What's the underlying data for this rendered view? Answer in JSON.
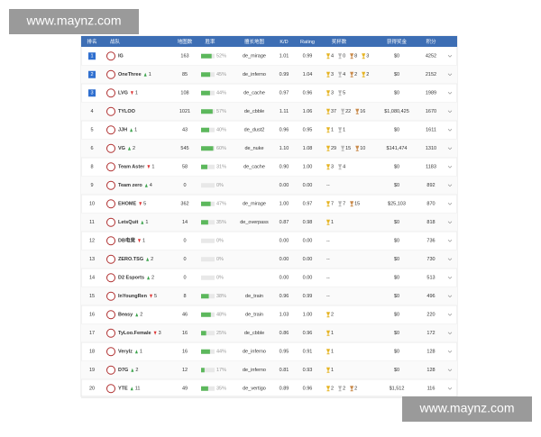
{
  "watermarks": [
    "www.maynz.com",
    "www.maynz.com"
  ],
  "table": {
    "headers": [
      "排名",
      "战队",
      "地图数",
      "胜率",
      "擅长地图",
      "K/D",
      "Rating",
      "奖杯数",
      "获得奖金",
      "积分"
    ],
    "rows": [
      {
        "rank": "1",
        "team": "IG",
        "change": null,
        "maps": "163",
        "win": {
          "value": 52,
          "label": "52%"
        },
        "map": "de_mirage",
        "kd": "1.01",
        "rating": "0.99",
        "trophies": [
          "4",
          "0",
          "8",
          "3"
        ],
        "prize": "$0",
        "points": "4252"
      },
      {
        "rank": "2",
        "team": "OneThree",
        "change": {
          "dir": "up",
          "text": "1"
        },
        "maps": "85",
        "win": {
          "value": 45,
          "label": "45%"
        },
        "map": "de_inferno",
        "kd": "0.99",
        "rating": "1.04",
        "trophies": [
          "3",
          "4",
          "2",
          "2"
        ],
        "prize": "$0",
        "points": "2152"
      },
      {
        "rank": "3",
        "team": "LVG",
        "change": {
          "dir": "down",
          "text": "1"
        },
        "maps": "108",
        "win": {
          "value": 44,
          "label": "44%"
        },
        "map": "de_cache",
        "kd": "0.97",
        "rating": "0.96",
        "trophies": [
          "3",
          "5"
        ],
        "prize": "$0",
        "points": "1989"
      },
      {
        "rank": "4",
        "team": "TYLOO",
        "change": null,
        "maps": "1021",
        "win": {
          "value": 57,
          "label": "57%"
        },
        "map": "de_cbble",
        "kd": "1.11",
        "rating": "1.06",
        "trophies": [
          "37",
          "22",
          "16"
        ],
        "prize": "$1,080,425",
        "points": "1670"
      },
      {
        "rank": "5",
        "team": "JJH",
        "change": {
          "dir": "up",
          "text": "1"
        },
        "maps": "43",
        "win": {
          "value": 40,
          "label": "40%"
        },
        "map": "de_dust2",
        "kd": "0.96",
        "rating": "0.95",
        "trophies": [
          "1",
          "1"
        ],
        "prize": "$0",
        "points": "1611"
      },
      {
        "rank": "6",
        "team": "VG",
        "change": {
          "dir": "up",
          "text": "2"
        },
        "maps": "545",
        "win": {
          "value": 60,
          "label": "60%"
        },
        "map": "de_nuke",
        "kd": "1.10",
        "rating": "1.08",
        "trophies": [
          "29",
          "15",
          "10"
        ],
        "prize": "$141,474",
        "points": "1310"
      },
      {
        "rank": "8",
        "team": "Team Aster",
        "change": {
          "dir": "down",
          "text": "1"
        },
        "maps": "58",
        "win": {
          "value": 31,
          "label": "31%"
        },
        "map": "de_cache",
        "kd": "0.90",
        "rating": "1.00",
        "trophies": [
          "3",
          "4"
        ],
        "prize": "$0",
        "points": "1183"
      },
      {
        "rank": "9",
        "team": "Team zero",
        "change": {
          "dir": "up",
          "text": "4"
        },
        "maps": "0",
        "win": {
          "value": 0,
          "label": "0%"
        },
        "map": null,
        "kd": "0.00",
        "rating": "0.00",
        "trophies": [
          "--"
        ],
        "prize": "$0",
        "points": "892"
      },
      {
        "rank": "10",
        "team": "EHOME",
        "change": {
          "dir": "down",
          "text": "5"
        },
        "maps": "362",
        "win": {
          "value": 47,
          "label": "47%"
        },
        "map": "de_mirage",
        "kd": "1.00",
        "rating": "0.97",
        "trophies": [
          "7",
          "7",
          "15"
        ],
        "prize": "$25,103",
        "points": "870"
      },
      {
        "rank": "11",
        "team": "LetsQuit",
        "change": {
          "dir": "up",
          "text": "1"
        },
        "maps": "14",
        "win": {
          "value": 35,
          "label": "35%"
        },
        "map": "de_overpass",
        "kd": "0.87",
        "rating": "0.98",
        "trophies": [
          "1"
        ],
        "prize": "$0",
        "points": "818"
      },
      {
        "rank": "12",
        "team": "DB电竞",
        "change": {
          "dir": "down",
          "text": "1"
        },
        "maps": "0",
        "win": {
          "value": 0,
          "label": "0%"
        },
        "map": null,
        "kd": "0.00",
        "rating": "0.00",
        "trophies": [
          "--"
        ],
        "prize": "$0",
        "points": "736"
      },
      {
        "rank": "13",
        "team": "ZERO.TSG",
        "change": {
          "dir": "up",
          "text": "2"
        },
        "maps": "0",
        "win": {
          "value": 0,
          "label": "0%"
        },
        "map": null,
        "kd": "0.00",
        "rating": "0.00",
        "trophies": [
          "--"
        ],
        "prize": "$0",
        "points": "730"
      },
      {
        "rank": "14",
        "team": "D2 Esports",
        "change": {
          "dir": "up",
          "text": "2"
        },
        "maps": "0",
        "win": {
          "value": 0,
          "label": "0%"
        },
        "map": null,
        "kd": "0.00",
        "rating": "0.00",
        "trophies": [
          "--"
        ],
        "prize": "$0",
        "points": "513"
      },
      {
        "rank": "15",
        "team": "InYoungRen",
        "change": {
          "dir": "down",
          "text": "5"
        },
        "maps": "8",
        "win": {
          "value": 38,
          "label": "38%"
        },
        "map": "de_train",
        "kd": "0.96",
        "rating": "0.99",
        "trophies": [
          "--"
        ],
        "prize": "$0",
        "points": "496"
      },
      {
        "rank": "16",
        "team": "Beasy",
        "change": {
          "dir": "up",
          "text": "2"
        },
        "maps": "46",
        "win": {
          "value": 48,
          "label": "48%"
        },
        "map": "de_train",
        "kd": "1.03",
        "rating": "1.00",
        "trophies": [
          "2"
        ],
        "prize": "$0",
        "points": "220"
      },
      {
        "rank": "17",
        "team": "TyLoo.Female",
        "change": {
          "dir": "down",
          "text": "3"
        },
        "maps": "16",
        "win": {
          "value": 25,
          "label": "25%"
        },
        "map": "de_cbble",
        "kd": "0.86",
        "rating": "0.96",
        "trophies": [
          "1"
        ],
        "prize": "$0",
        "points": "172"
      },
      {
        "rank": "18",
        "team": "Verylz",
        "change": {
          "dir": "up",
          "text": "1"
        },
        "maps": "16",
        "win": {
          "value": 44,
          "label": "44%"
        },
        "map": "de_inferno",
        "kd": "0.95",
        "rating": "0.91",
        "trophies": [
          "1"
        ],
        "prize": "$0",
        "points": "128"
      },
      {
        "rank": "19",
        "team": "D7G",
        "change": {
          "dir": "up",
          "text": "2"
        },
        "maps": "12",
        "win": {
          "value": 17,
          "label": "17%"
        },
        "map": "de_inferno",
        "kd": "0.81",
        "rating": "0.93",
        "trophies": [
          "1"
        ],
        "prize": "$0",
        "points": "128"
      },
      {
        "rank": "20",
        "team": "YTE",
        "change": {
          "dir": "up",
          "text": "11"
        },
        "maps": "49",
        "win": {
          "value": 35,
          "label": "35%"
        },
        "map": "de_vertigo",
        "kd": "0.89",
        "rating": "0.96",
        "trophies": [
          "2",
          "2",
          "2"
        ],
        "prize": "$1,512",
        "points": "116"
      }
    ]
  }
}
